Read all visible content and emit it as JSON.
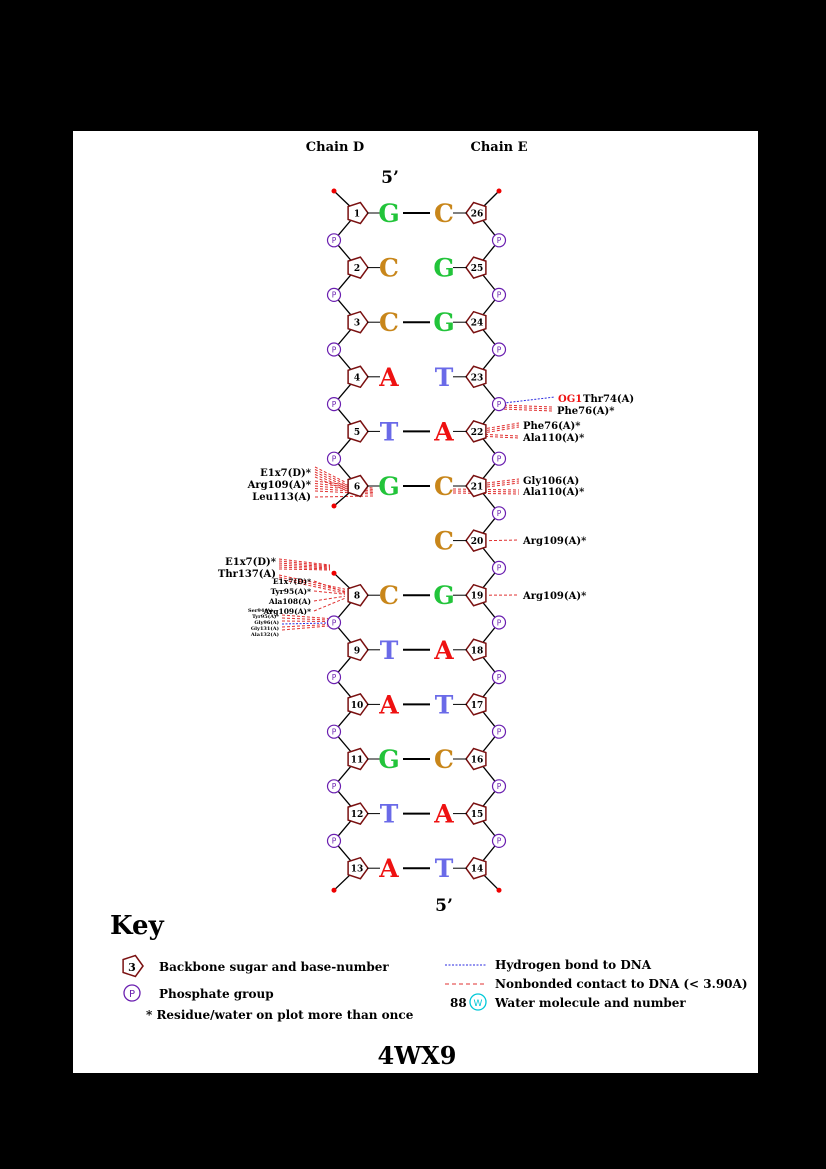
{
  "header": {
    "chain_left": "Chain D",
    "chain_right": "Chain E",
    "five_prime_top": "5’",
    "five_prime_bottom": "5’"
  },
  "colors": {
    "G": "#22c43a",
    "C": "#c8861a",
    "A": "#ee1111",
    "T": "#6a6ae8",
    "sugar": "#7a1010",
    "phosphate": "#6a1fb0",
    "hbond": "#2a2ae0",
    "contact": "#e03030",
    "water": "#00c8d8"
  },
  "pairs": [
    {
      "left_num": "1",
      "left_base": "G",
      "right_num": "26",
      "right_base": "C",
      "paired": true
    },
    {
      "left_num": "2",
      "left_base": "C",
      "right_num": "25",
      "right_base": "G",
      "paired": false
    },
    {
      "left_num": "3",
      "left_base": "C",
      "right_num": "24",
      "right_base": "G",
      "paired": true
    },
    {
      "left_num": "4",
      "left_base": "A",
      "right_num": "23",
      "right_base": "T",
      "paired": false
    },
    {
      "left_num": "5",
      "left_base": "T",
      "right_num": "22",
      "right_base": "A",
      "paired": true
    },
    {
      "left_num": "6",
      "left_base": "G",
      "right_num": "21",
      "right_base": "C",
      "paired": true
    },
    {
      "left_num": "",
      "left_base": "",
      "right_num": "20",
      "right_base": "C",
      "paired": false
    },
    {
      "left_num": "8",
      "left_base": "C",
      "right_num": "19",
      "right_base": "G",
      "paired": true
    },
    {
      "left_num": "9",
      "left_base": "T",
      "right_num": "18",
      "right_base": "A",
      "paired": true
    },
    {
      "left_num": "10",
      "left_base": "A",
      "right_num": "17",
      "right_base": "T",
      "paired": true
    },
    {
      "left_num": "11",
      "left_base": "G",
      "right_num": "16",
      "right_base": "C",
      "paired": true
    },
    {
      "left_num": "12",
      "left_base": "T",
      "right_num": "15",
      "right_base": "A",
      "paired": true
    },
    {
      "left_num": "13",
      "left_base": "A",
      "right_num": "14",
      "right_base": "T",
      "paired": true
    }
  ],
  "phosphate_label": "P",
  "interactions_right": [
    {
      "id": "og1",
      "atom": "OG1",
      "residue": "Thr74(A)",
      "type": "hbond"
    },
    {
      "id": "phe76a",
      "atom": "",
      "residue": "Phe76(A)*",
      "type": "contact"
    },
    {
      "id": "phe76b",
      "atom": "",
      "residue": "Phe76(A)*",
      "type": "contact"
    },
    {
      "id": "ala110a",
      "atom": "",
      "residue": "Ala110(A)*",
      "type": "contact"
    },
    {
      "id": "gly106",
      "atom": "",
      "residue": "Gly106(A)",
      "type": "contact"
    },
    {
      "id": "ala110b",
      "atom": "",
      "residue": "Ala110(A)*",
      "type": "contact"
    },
    {
      "id": "arg109a",
      "atom": "",
      "residue": "Arg109(A)*",
      "type": "contact"
    },
    {
      "id": "arg109b",
      "atom": "",
      "residue": "Arg109(A)*",
      "type": "contact"
    }
  ],
  "interactions_left": [
    {
      "id": "e1x7a",
      "residue": "E1x7(D)*",
      "type": "contact"
    },
    {
      "id": "arg109c",
      "residue": "Arg109(A)*",
      "type": "contact"
    },
    {
      "id": "leu113",
      "residue": "Leu113(A)",
      "type": "contact"
    },
    {
      "id": "e1x7b",
      "residue": "E1x7(D)*",
      "type": "contact"
    },
    {
      "id": "thr137",
      "residue": "Thr137(A)",
      "type": "contact"
    },
    {
      "id": "e1x7c",
      "residue": "E1x7(D)*",
      "type": "contact"
    },
    {
      "id": "tyr95",
      "residue": "Tyr95(A)*",
      "type": "contact"
    },
    {
      "id": "ala108",
      "residue": "Ala108(A)",
      "type": "contact"
    },
    {
      "id": "arg109d",
      "residue": "Arg109(A)*",
      "type": "contact"
    },
    {
      "id": "ser94",
      "residue": "Ser94(A)",
      "type": "contact"
    },
    {
      "id": "tyr95b",
      "residue": "Tyr95(A)*",
      "type": "contact"
    },
    {
      "id": "gly96",
      "residue": "Gly96(A)",
      "type": "hbond"
    },
    {
      "id": "gly131",
      "residue": "Gly131(A)",
      "type": "contact"
    },
    {
      "id": "ala132",
      "residue": "Ala132(A)",
      "type": "contact"
    }
  ],
  "key": {
    "title": "Key",
    "sugar_example": "3",
    "sugar_text": "Backbone sugar and base-number",
    "phosphate_example": "P",
    "phosphate_text": "Phosphate group",
    "repeat_text": "* Residue/water on plot more than once",
    "hbond_text": "Hydrogen bond to DNA",
    "contact_text": "Nonbonded contact to DNA (< 3.90A)",
    "water_number": "88",
    "water_symbol": "W",
    "water_text": "Water molecule and number"
  },
  "pdb_id": "4WX9"
}
